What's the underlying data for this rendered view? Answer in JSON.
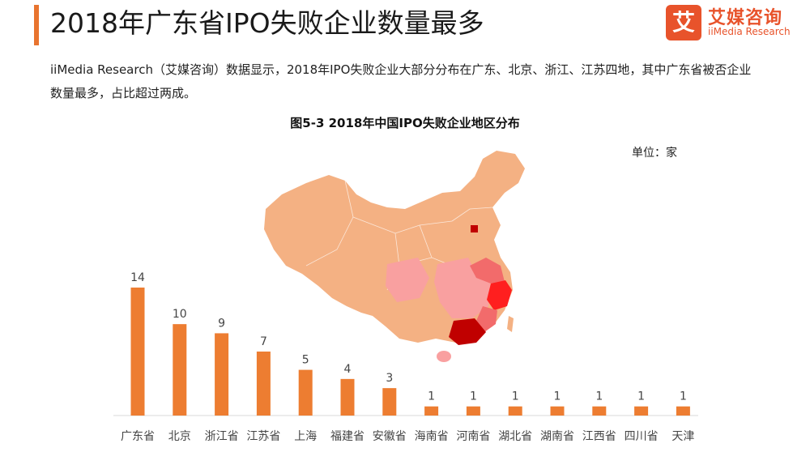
{
  "header": {
    "title": "2018年广东省IPO失败企业数量最多",
    "logo_mark": "艾",
    "logo_cn": "艾媒咨询",
    "logo_en": "iiMedia Research"
  },
  "intro": "iiMedia Research（艾媒咨询）数据显示，2018年IPO失败企业大部分分布在广东、北京、浙江、江苏四地，其中广东省被否企业数量最多，占比超过两成。",
  "colors": {
    "accent": "#e8742f",
    "bar": "#ed7d31",
    "brand": "#e8532b",
    "map_base": "#f4b183",
    "map_light": "#f9a0a0",
    "map_mid": "#f26b6b",
    "map_high": "#ff1f1f",
    "map_top": "#c00000"
  },
  "chart_data": {
    "type": "bar",
    "title": "图5-3 2018年中国IPO失败企业地区分布",
    "unit": "单位：家",
    "categories": [
      "广东省",
      "北京",
      "浙江省",
      "江苏省",
      "上海",
      "福建省",
      "安徽省",
      "海南省",
      "河南省",
      "湖北省",
      "湖南省",
      "江西省",
      "四川省",
      "天津"
    ],
    "values": [
      14,
      10,
      9,
      7,
      5,
      4,
      3,
      1,
      1,
      1,
      1,
      1,
      1,
      1
    ],
    "ylim": [
      0,
      14
    ]
  }
}
